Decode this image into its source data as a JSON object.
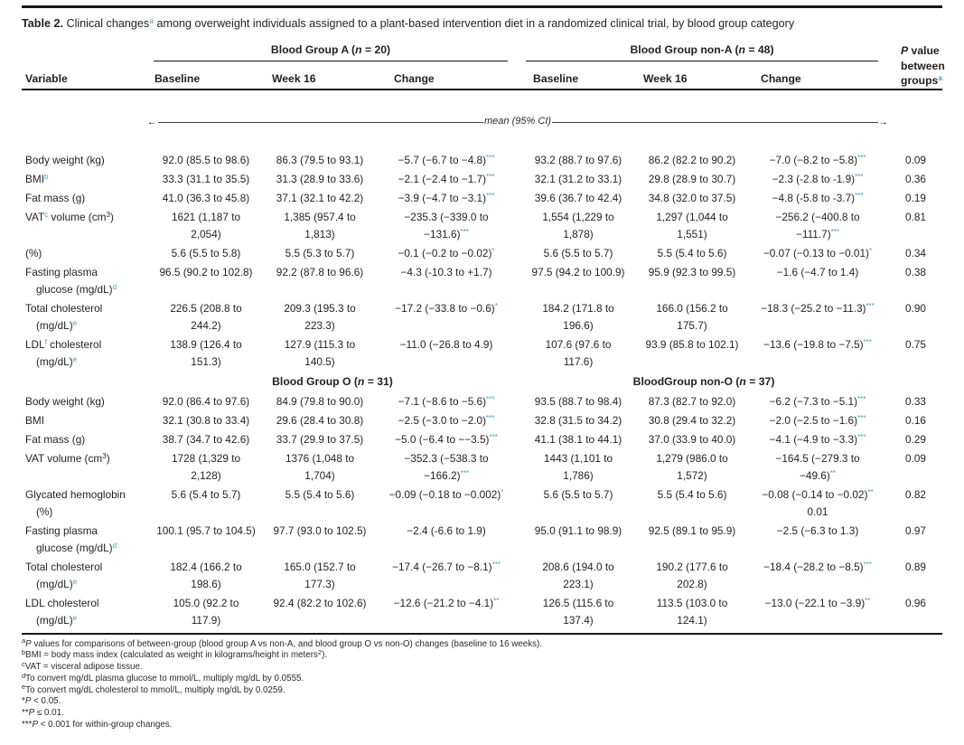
{
  "colors": {
    "accent": "#459fc4",
    "text": "#231f20",
    "rule": "#161616"
  },
  "title": {
    "label": "Table 2.",
    "text": " Clinical changes^{a} among overweight individuals assigned to a plant-based intervention diet in a randomized clinical trial, by blood group category"
  },
  "table": {
    "arrow_left": "←",
    "arrow_right": "→",
    "axis_note": "mean (95% CI)",
    "group_headers": {
      "a": "Blood Group A (i{n} = 20)",
      "non_a": "Blood Group non-A (i{n} = 48)"
    },
    "p_header_lines": [
      "i{P} value",
      "between",
      "groups^{a}"
    ],
    "col_headers": [
      "Variable",
      "Baseline",
      "Week 16",
      "Change",
      "Baseline",
      "Week 16",
      "Change"
    ],
    "sections": [
      {
        "rows": [
          {
            "variable": "Body weight (kg)",
            "cells": [
              "92.0 (85.5 to 98.6)",
              "86.3 (79.5 to 93.1)",
              "−5.7 (−6.7 to −4.8)^{***}",
              "93.2 (88.7 to 97.6)",
              "86.2 (82.2 to 90.2)",
              "−7.0 (−8.2 to −5.8)^{***}",
              "0.09"
            ]
          },
          {
            "variable": "BMI^{b}",
            "cells": [
              "33.3 (31.1 to 35.5)",
              "31.3 (28.9 to 33.6)",
              "−2.1 (−2.4 to −1.7)^{***}",
              "32.1 (31.2 to 33.1)",
              "29.8 (28.9 to 30.7)",
              "−2.3 (-2.8 to -1.9)^{***}",
              "0.36"
            ]
          },
          {
            "variable": "Fat mass (g)",
            "cells": [
              "41.0 (36.3 to 45.8)",
              "37.1 (32.1 to 42.2)",
              "−3.9 (−4.7 to −3.1)^{***}",
              "39.6 (36.7 to 42.4)",
              "34.8 (32.0 to 37.5)",
              "−4.8 (-5.8 to -3.7)^{***}",
              "0.19"
            ]
          },
          {
            "variable": "VAT^{c} volume (cm~{3})",
            "cells": [
              "1621 (1,187 to\n2,054)",
              "1,385 (957.4 to\n1,813)",
              "−235.3 (−339.0 to\n−131.6)^{***}",
              "1,554 (1,229 to\n1,878)",
              "1,297 (1,044 to\n1,551)",
              "−256.2 (−400.8 to\n−111.7)^{***}",
              "0.81"
            ]
          },
          {
            "variable": "(%)",
            "cells": [
              "5.6 (5.5 to 5.8)",
              "5.5 (5.3 to 5.7)",
              "−0.1 (−0.2 to −0.02)^{*}",
              "5.6 (5.5 to 5.7)",
              "5.5 (5.4 to 5.6)",
              "−0.07 (−0.13 to −0.01)^{*}",
              "0.34"
            ]
          },
          {
            "variable": "Fasting plasma\nglucose (mg/dL)^{d}",
            "cells": [
              "96.5 (90.2 to 102.8)",
              "92.2 (87.8 to 96.6)",
              "−4.3 (-10.3 to +1.7)",
              "97.5 (94.2 to 100.9)",
              "95.9 (92.3 to 99.5)",
              "−1.6 (−4.7 to 1.4)",
              "0.38"
            ]
          },
          {
            "variable": "Total cholesterol\n(mg/dL)^{e}",
            "cells": [
              "226.5 (208.8 to\n244.2)",
              "209.3 (195.3 to\n223.3)",
              "−17.2 (−33.8 to −0.6)^{*}",
              "184.2 (171.8 to\n196.6)",
              "166.0 (156.2 to\n175.7)",
              "−18.3 (−25.2 to −11.3)^{***}",
              "0.90"
            ]
          },
          {
            "variable": "LDL^{f} cholesterol\n(mg/dL)^{e}",
            "cells": [
              "138.9 (126.4 to\n151.3)",
              "127.9 (115.3 to\n140.5)",
              "−11.0 (−26.8 to 4.9)",
              "107.6 (97.6 to\n117.6)",
              "93.9 (85.8 to 102.1)",
              "−13.6 (−19.8 to −7.5)^{***}",
              "0.75"
            ]
          }
        ]
      },
      {
        "header_left": "Blood Group O (i{n} = 31)",
        "header_right": "BloodGroup non-O (i{n} = 37)",
        "rows": [
          {
            "variable": "Body weight (kg)",
            "cells": [
              "92.0 (86.4 to 97.6)",
              "84.9 (79.8 to 90.0)",
              "−7.1 (−8.6 to −5.6)^{***}",
              "93.5 (88.7 to 98.4)",
              "87.3 (82.7 to 92.0)",
              "−6.2 (−7.3 to −5.1)^{***}",
              "0.33"
            ]
          },
          {
            "variable": "BMI",
            "cells": [
              "32.1 (30.8 to 33.4)",
              "29.6 (28.4 to 30.8)",
              "−2.5 (−3.0 to −2.0)^{***}",
              "32.8 (31.5 to 34.2)",
              "30.8 (29.4 to 32.2)",
              "−2.0 (−2.5 to −1.6)^{***}",
              "0.16"
            ]
          },
          {
            "variable": "Fat mass (g)",
            "cells": [
              "38.7 (34.7 to 42.6)",
              "33.7 (29.9 to 37.5)",
              "−5.0 (−6.4 to −−3.5)^{***}",
              "41.1 (38.1 to 44.1)",
              "37.0 (33.9 to 40.0)",
              "−4.1 (−4.9 to −3.3)^{***}",
              "0.29"
            ]
          },
          {
            "variable": "VAT volume (cm~{3})",
            "cells": [
              "1728 (1,329 to\n2,128)",
              "1376 (1,048 to\n1,704)",
              "−352.3 (−538.3 to\n−166.2)^{***}",
              "1443 (1,101 to\n1,786)",
              "1,279 (986.0 to\n1,572)",
              "−164.5 (−279.3 to\n−49.6)^{**}",
              "0.09"
            ]
          },
          {
            "variable": "Glycated hemoglobin\n(%)",
            "cells": [
              "5.6 (5.4 to 5.7)",
              "5.5 (5.4 to 5.6)",
              "−0.09 (−0.18 to −0.002)^{*}",
              "5.6 (5.5 to 5.7)",
              "5.5 (5.4 to 5.6)",
              "−0.08 (−0.14 to −0.02)^{**}\n0.01",
              "0.82"
            ]
          },
          {
            "variable": "Fasting plasma\nglucose (mg/dL)^{d}",
            "cells": [
              "100.1 (95.7 to 104.5)",
              "97.7 (93.0 to 102.5)",
              "−2.4 (-6.6 to 1.9)",
              "95.0 (91.1 to 98.9)",
              "92.5 (89.1 to 95.9)",
              "−2.5 (−6.3 to 1.3)",
              "0.97"
            ]
          },
          {
            "variable": "Total cholesterol\n(mg/dL)^{e}",
            "cells": [
              "182.4 (166.2 to\n198.6)",
              "165.0 (152.7 to\n177.3)",
              "−17.4 (−26.7 to −8.1)^{***}",
              "208.6 (194.0 to\n223.1)",
              "190.2 (177.6 to\n202.8)",
              "−18.4 (−28.2 to −8.5)^{***}",
              "0.89"
            ]
          },
          {
            "variable": "LDL cholesterol\n(mg/dL)^{e}",
            "cells": [
              "105.0 (92.2 to\n117.9)",
              "92.4 (82.2 to 102.6)",
              "−12.6 (−21.2 to −4.1)^{**}",
              "126.5 (115.6 to\n137.4)",
              "113.5 (103.0 to\n124.1)",
              "−13.0 (−22.1 to −3.9)^{**}",
              "0.96"
            ]
          }
        ]
      }
    ]
  },
  "footnotes": [
    "~{a}i{P} values for comparisons of between-group (blood group A vs non-A, and blood group O vs non-O) changes (baseline to 16 weeks).",
    "~{b}BMI = body mass index (calculated as weight in kilograms/height in meters~{2}).",
    "~{c}VAT = visceral adipose tissue.",
    "~{d}To convert mg/dL plasma glucose to mmol/L, multiply mg/dL by 0.0555.",
    "~{e}To convert mg/dL cholesterol to mmol/L, multiply mg/dL by 0.0259.",
    "*i{P} < 0.05.",
    "**i{P} ≤ 0.01.",
    "***i{P} < 0.001 for within-group changes."
  ]
}
